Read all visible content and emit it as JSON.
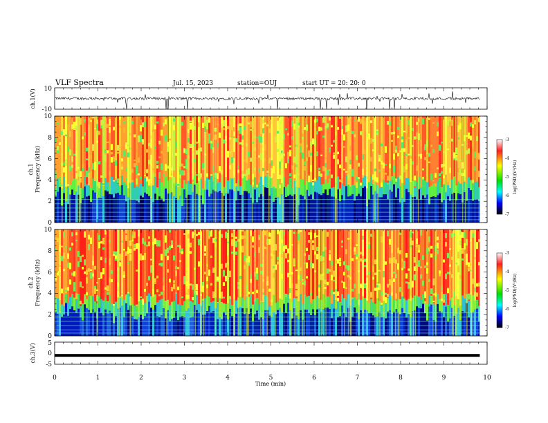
{
  "chart_data": {
    "type": "heatmap",
    "title": "VLF Spectra",
    "header": {
      "date": "Jul. 15, 2023",
      "station": "station=OUJ",
      "start": "start UT =  20: 20: 0"
    },
    "xlabel": "Time (min)",
    "x_ticks": [
      "0",
      "1",
      "2",
      "3",
      "4",
      "5",
      "6",
      "7",
      "8",
      "9",
      "10"
    ],
    "xlim": [
      0,
      10
    ],
    "data_end_min": 9.83,
    "panels": [
      {
        "kind": "waveform",
        "ylabel": "ch.1(V)",
        "ylim": [
          -10,
          10
        ],
        "y_ticks": [
          "10",
          "-10"
        ],
        "level": 0
      },
      {
        "kind": "spectrogram",
        "ylabel": "Frequency (kHz)",
        "ylabel2": "ch.1",
        "ylim": [
          0,
          10
        ],
        "y_ticks": [
          "10",
          "8",
          "6",
          "4",
          "2",
          "0"
        ]
      },
      {
        "kind": "spectrogram",
        "ylabel": "Frequency (kHz)",
        "ylabel2": "ch.2",
        "ylim": [
          0,
          10
        ],
        "y_ticks": [
          "10",
          "8",
          "6",
          "4",
          "2",
          "0"
        ]
      },
      {
        "kind": "waveform",
        "ylabel": "ch.3(V)",
        "ylim": [
          -5,
          5
        ],
        "y_ticks": [
          "5",
          "0",
          "-5"
        ],
        "level": -1
      }
    ],
    "colorbar": {
      "label": "log(PSD)(V²/Hz)",
      "range": [
        -7,
        -3
      ],
      "ticks": [
        "-3",
        "-4",
        "-5",
        "-6",
        "-7"
      ]
    },
    "grid": false,
    "legend": "none"
  }
}
